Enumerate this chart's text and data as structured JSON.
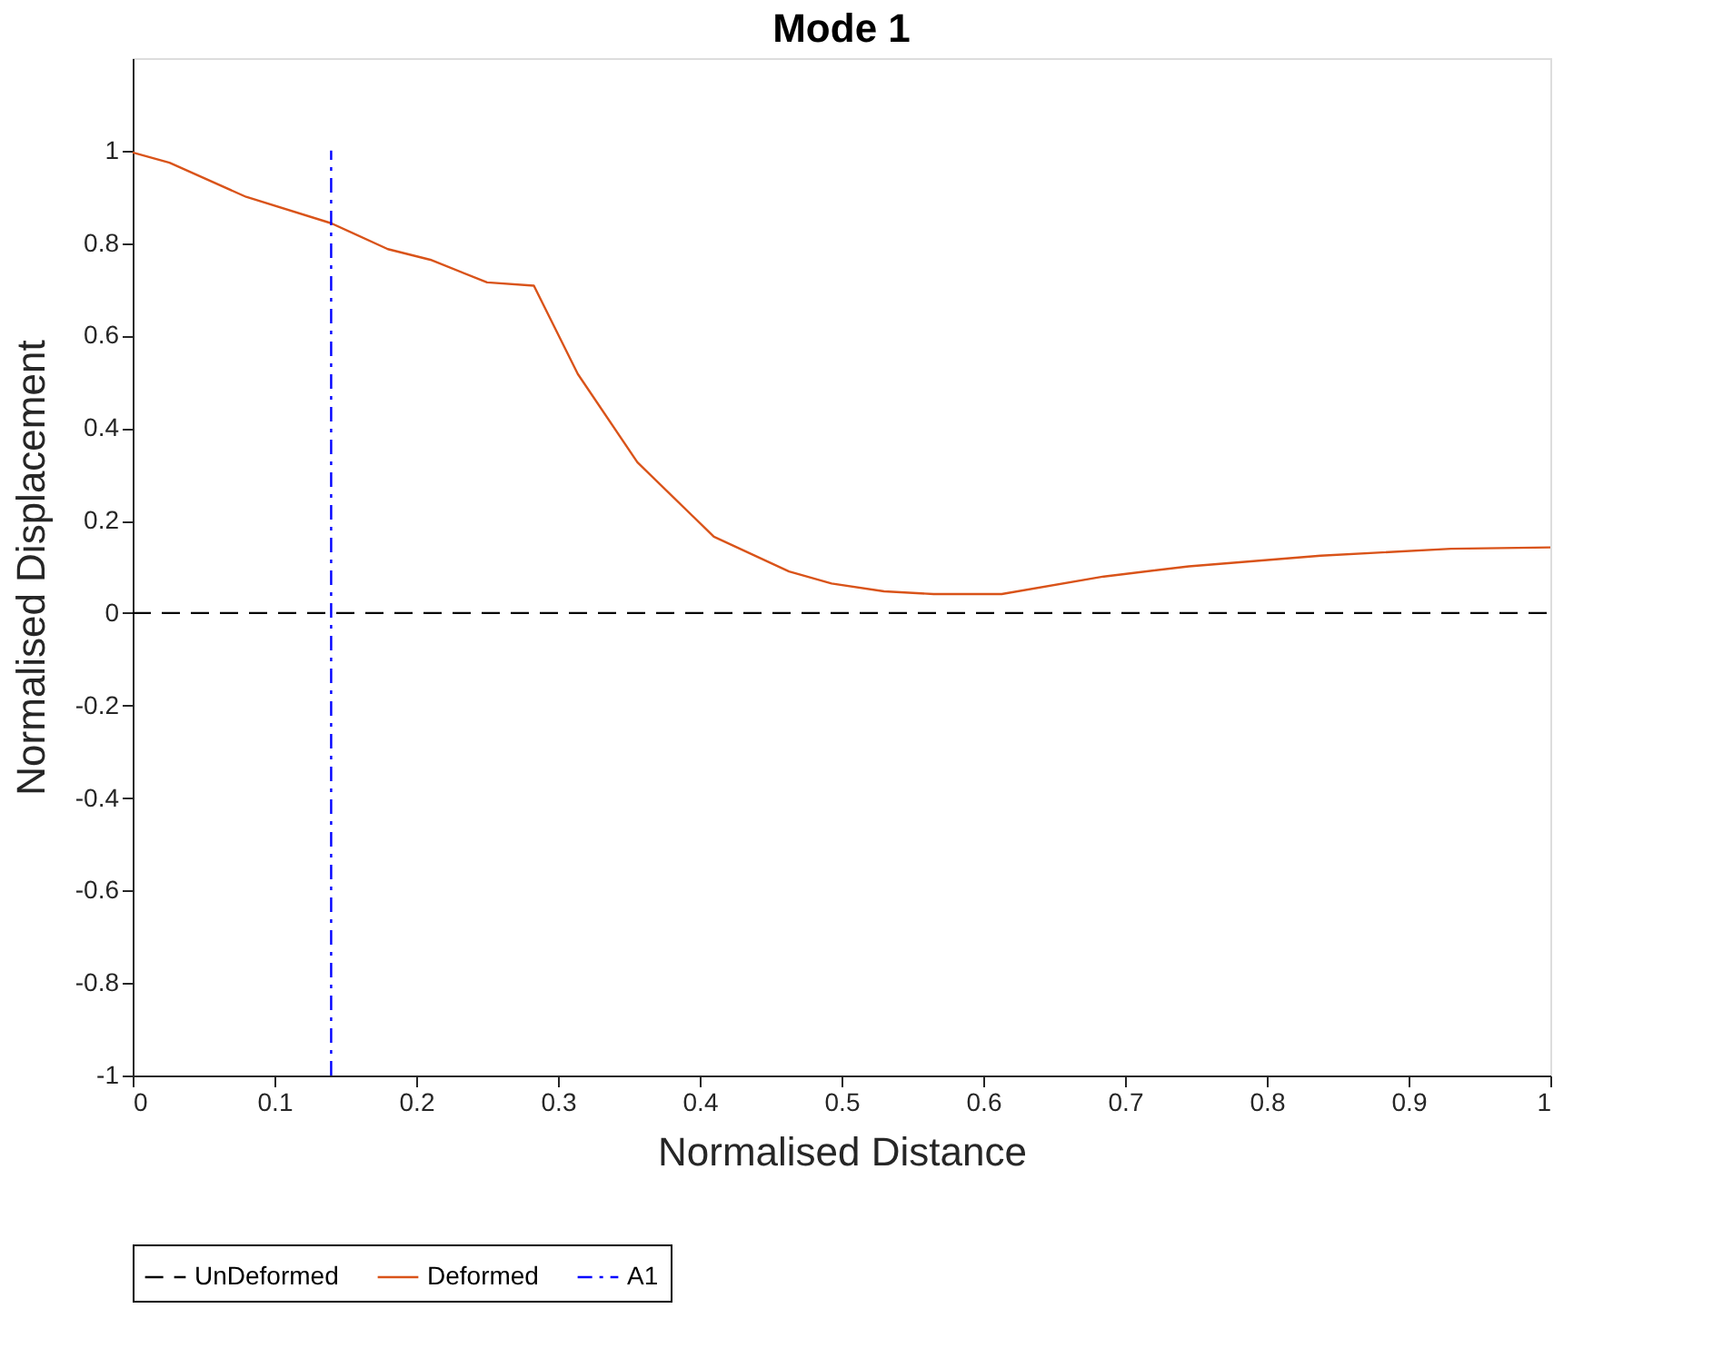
{
  "chart_data": {
    "type": "line",
    "title": "Mode 1",
    "xlabel": "Normalised Distance",
    "ylabel": "Normalised Displacement",
    "xlim": [
      0,
      1
    ],
    "xticks": [
      0,
      0.1,
      0.2,
      0.3,
      0.4,
      0.5,
      0.6,
      0.7,
      0.8,
      0.9,
      1
    ],
    "ylim": [
      -1,
      1.2
    ],
    "yticks": [
      -1,
      -0.8,
      -0.6,
      -0.4,
      -0.2,
      0,
      0.2,
      0.4,
      0.6,
      0.8,
      1
    ],
    "grid": false,
    "legend": "bottom",
    "marker": "none",
    "series": [
      {
        "name": "UnDeformed",
        "color": "#000000",
        "line_style": "dashed",
        "x": [
          0,
          1
        ],
        "values": [
          0,
          0
        ]
      },
      {
        "name": "Deformed",
        "color": "#d95319",
        "line_style": "solid",
        "x": [
          0,
          0.026,
          0.08,
          0.14,
          0.18,
          0.21,
          0.25,
          0.283,
          0.314,
          0.356,
          0.41,
          0.463,
          0.493,
          0.53,
          0.565,
          0.613,
          0.685,
          0.745,
          0.838,
          0.93,
          1.0
        ],
        "values": [
          0.996,
          0.974,
          0.9,
          0.843,
          0.787,
          0.764,
          0.715,
          0.708,
          0.517,
          0.326,
          0.165,
          0.09,
          0.064,
          0.047,
          0.041,
          0.041,
          0.079,
          0.101,
          0.124,
          0.139,
          0.142
        ]
      },
      {
        "name": "A1",
        "color": "#0000ff",
        "line_style": "dashdot",
        "x": [
          0.14,
          0.14
        ],
        "values": [
          -1,
          1
        ]
      }
    ]
  }
}
